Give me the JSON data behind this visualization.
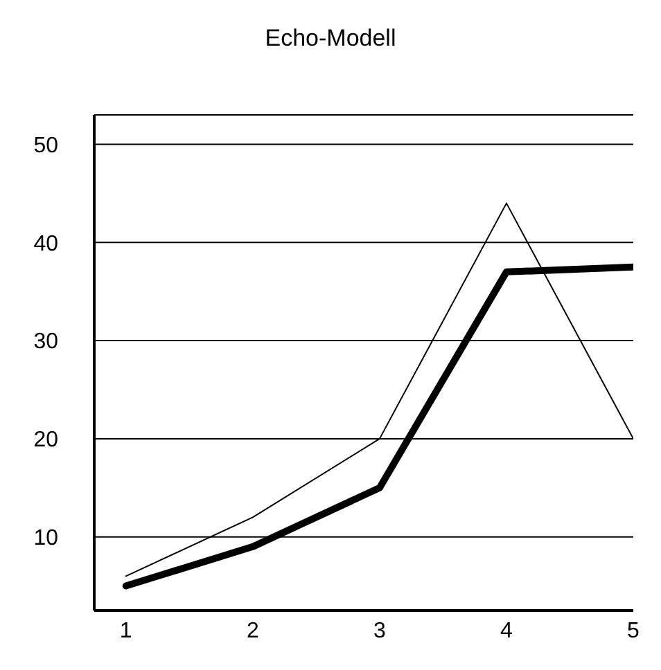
{
  "chart_data": {
    "type": "line",
    "title": "Echo-Modell",
    "x": [
      1,
      2,
      3,
      4,
      5
    ],
    "series": [
      {
        "color": "#000000",
        "values": [
          6,
          12,
          20,
          44,
          20
        ]
      },
      {
        "color": "#000000",
        "values": [
          5,
          9,
          15,
          37,
          37.5
        ]
      }
    ],
    "xlim": [
      0.75,
      5
    ],
    "xticks": [
      1,
      2,
      3,
      4,
      5
    ],
    "ylim": [
      2.5,
      53
    ],
    "yticks": [
      10,
      20,
      30,
      40,
      50
    ],
    "grid": "y",
    "marker": "none",
    "line_style": "solid"
  }
}
